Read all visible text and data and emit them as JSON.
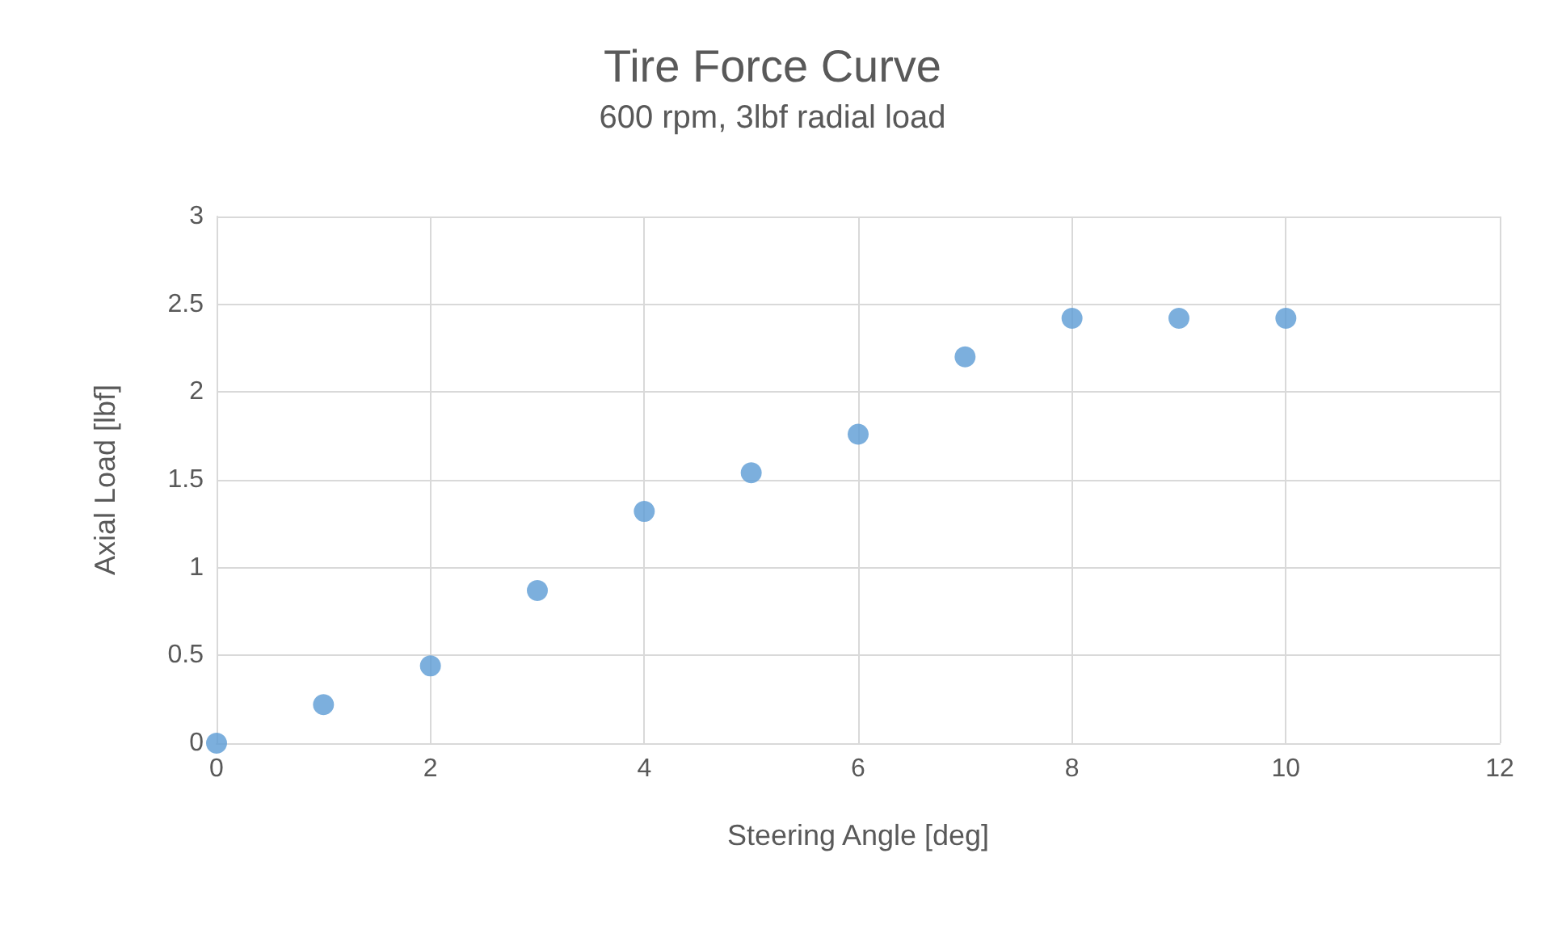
{
  "chart_data": {
    "type": "scatter",
    "title": "Tire Force Curve",
    "subtitle": "600 rpm, 3lbf radial load",
    "xlabel": "Steering Angle [deg]",
    "ylabel": "Axial Load [lbf]",
    "x": [
      0,
      1,
      2,
      3,
      4,
      5,
      6,
      7,
      8,
      9,
      10
    ],
    "series": [
      {
        "color": "#5b9bd5",
        "values": [
          0,
          0.22,
          0.44,
          0.87,
          1.32,
          1.54,
          1.76,
          2.2,
          2.42,
          2.42,
          2.42
        ]
      }
    ],
    "xlim": [
      0,
      12
    ],
    "xticks": [
      0,
      2,
      4,
      6,
      8,
      10,
      12
    ],
    "ylim": [
      0,
      3
    ],
    "yticks": [
      0,
      0.5,
      1,
      1.5,
      2,
      2.5,
      3
    ],
    "grid": true,
    "marker": "circle"
  }
}
